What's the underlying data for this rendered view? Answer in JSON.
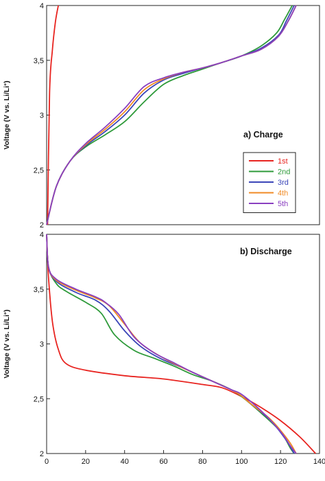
{
  "chart_data": [
    {
      "type": "line",
      "panel_title": "a) Charge",
      "ylabel": "Voltage (V vs. Li/Li",
      "ylabel_sup": "+",
      "ylabel_close": ")",
      "ylim": [
        2,
        4
      ],
      "xlim": [
        0,
        140
      ],
      "yticks": [
        "2",
        "2,5",
        "3",
        "3,5",
        "4"
      ],
      "yticks_values": [
        2,
        2.5,
        3,
        3.5,
        4
      ],
      "legend_position": "right",
      "series": [
        {
          "name": "1st",
          "color": "#e8231f",
          "points": [
            [
              0.5,
              2.0
            ],
            [
              1.5,
              3.2
            ],
            [
              3,
              3.6
            ],
            [
              4.5,
              3.85
            ],
            [
              6,
              4.0
            ]
          ]
        },
        {
          "name": "2nd",
          "color": "#2e9a3a",
          "points": [
            [
              0,
              2.0
            ],
            [
              5,
              2.35
            ],
            [
              12,
              2.58
            ],
            [
              20,
              2.71
            ],
            [
              30,
              2.82
            ],
            [
              40,
              2.94
            ],
            [
              50,
              3.12
            ],
            [
              60,
              3.28
            ],
            [
              70,
              3.36
            ],
            [
              80,
              3.42
            ],
            [
              90,
              3.48
            ],
            [
              100,
              3.54
            ],
            [
              110,
              3.63
            ],
            [
              118,
              3.75
            ],
            [
              122,
              3.87
            ],
            [
              126,
              4.0
            ]
          ]
        },
        {
          "name": "3rd",
          "color": "#3b46b8",
          "points": [
            [
              0,
              2.0
            ],
            [
              5,
              2.35
            ],
            [
              12,
              2.58
            ],
            [
              20,
              2.72
            ],
            [
              30,
              2.85
            ],
            [
              40,
              3.0
            ],
            [
              50,
              3.2
            ],
            [
              60,
              3.32
            ],
            [
              70,
              3.38
            ],
            [
              80,
              3.43
            ],
            [
              90,
              3.48
            ],
            [
              100,
              3.54
            ],
            [
              110,
              3.61
            ],
            [
              119,
              3.73
            ],
            [
              123,
              3.86
            ],
            [
              127,
              4.0
            ]
          ]
        },
        {
          "name": "4th",
          "color": "#f08a24",
          "points": [
            [
              0,
              2.0
            ],
            [
              5,
              2.35
            ],
            [
              12,
              2.58
            ],
            [
              20,
              2.73
            ],
            [
              30,
              2.87
            ],
            [
              40,
              3.03
            ],
            [
              50,
              3.23
            ],
            [
              60,
              3.33
            ],
            [
              70,
              3.39
            ],
            [
              80,
              3.43
            ],
            [
              90,
              3.48
            ],
            [
              100,
              3.54
            ],
            [
              110,
              3.6
            ],
            [
              119,
              3.72
            ],
            [
              124,
              3.86
            ],
            [
              128,
              4.0
            ]
          ]
        },
        {
          "name": "5th",
          "color": "#8a3fc0",
          "points": [
            [
              0,
              2.0
            ],
            [
              5,
              2.35
            ],
            [
              12,
              2.58
            ],
            [
              20,
              2.74
            ],
            [
              30,
              2.89
            ],
            [
              40,
              3.06
            ],
            [
              50,
              3.26
            ],
            [
              60,
              3.34
            ],
            [
              70,
              3.39
            ],
            [
              80,
              3.43
            ],
            [
              90,
              3.48
            ],
            [
              100,
              3.54
            ],
            [
              110,
              3.6
            ],
            [
              119,
              3.72
            ],
            [
              124,
              3.86
            ],
            [
              128,
              4.0
            ]
          ]
        }
      ]
    },
    {
      "type": "line",
      "panel_title": "b) Discharge",
      "ylabel": "Voltage (V vs. Li/Li",
      "ylabel_sup": "+",
      "ylabel_close": ")",
      "ylim": [
        2,
        4
      ],
      "xlim": [
        0,
        140
      ],
      "yticks": [
        "2",
        "2,5",
        "3",
        "3,5",
        "4"
      ],
      "yticks_values": [
        2,
        2.5,
        3,
        3.5,
        4
      ],
      "xticks": [
        "0",
        "20",
        "40",
        "60",
        "80",
        "100",
        "120",
        "140"
      ],
      "xticks_values": [
        0,
        20,
        40,
        60,
        80,
        100,
        120,
        140
      ],
      "series": [
        {
          "name": "1st",
          "color": "#e8231f",
          "points": [
            [
              0,
              4.0
            ],
            [
              1,
              3.6
            ],
            [
              3,
              3.2
            ],
            [
              6,
              2.95
            ],
            [
              10,
              2.82
            ],
            [
              20,
              2.76
            ],
            [
              40,
              2.71
            ],
            [
              60,
              2.68
            ],
            [
              80,
              2.63
            ],
            [
              90,
              2.6
            ],
            [
              100,
              2.52
            ],
            [
              110,
              2.42
            ],
            [
              120,
              2.3
            ],
            [
              130,
              2.15
            ],
            [
              138,
              2.0
            ]
          ]
        },
        {
          "name": "2nd",
          "color": "#2e9a3a",
          "points": [
            [
              0,
              4.0
            ],
            [
              1,
              3.7
            ],
            [
              5,
              3.55
            ],
            [
              10,
              3.48
            ],
            [
              20,
              3.38
            ],
            [
              28,
              3.28
            ],
            [
              35,
              3.08
            ],
            [
              45,
              2.94
            ],
            [
              55,
              2.87
            ],
            [
              65,
              2.8
            ],
            [
              75,
              2.72
            ],
            [
              85,
              2.66
            ],
            [
              95,
              2.58
            ],
            [
              100,
              2.52
            ],
            [
              110,
              2.37
            ],
            [
              120,
              2.2
            ],
            [
              125,
              2.05
            ],
            [
              127,
              2.0
            ]
          ]
        },
        {
          "name": "3rd",
          "color": "#3b46b8",
          "points": [
            [
              0,
              4.0
            ],
            [
              1,
              3.7
            ],
            [
              5,
              3.57
            ],
            [
              15,
              3.47
            ],
            [
              25,
              3.4
            ],
            [
              32,
              3.3
            ],
            [
              40,
              3.12
            ],
            [
              48,
              2.98
            ],
            [
              58,
              2.87
            ],
            [
              70,
              2.78
            ],
            [
              80,
              2.7
            ],
            [
              90,
              2.62
            ],
            [
              98,
              2.55
            ],
            [
              105,
              2.45
            ],
            [
              115,
              2.3
            ],
            [
              123,
              2.12
            ],
            [
              127,
              2.0
            ]
          ]
        },
        {
          "name": "4th",
          "color": "#f08a24",
          "points": [
            [
              0,
              4.0
            ],
            [
              1,
              3.7
            ],
            [
              5,
              3.58
            ],
            [
              15,
              3.49
            ],
            [
              25,
              3.42
            ],
            [
              32,
              3.35
            ],
            [
              40,
              3.18
            ],
            [
              48,
              3.01
            ],
            [
              58,
              2.89
            ],
            [
              70,
              2.78
            ],
            [
              80,
              2.7
            ],
            [
              90,
              2.62
            ],
            [
              98,
              2.55
            ],
            [
              105,
              2.45
            ],
            [
              115,
              2.31
            ],
            [
              124,
              2.12
            ],
            [
              128,
              2.0
            ]
          ]
        },
        {
          "name": "5th",
          "color": "#8a3fc0",
          "points": [
            [
              0,
              4.0
            ],
            [
              1,
              3.7
            ],
            [
              5,
              3.59
            ],
            [
              15,
              3.5
            ],
            [
              25,
              3.43
            ],
            [
              30,
              3.38
            ],
            [
              37,
              3.27
            ],
            [
              45,
              3.06
            ],
            [
              55,
              2.92
            ],
            [
              65,
              2.83
            ],
            [
              75,
              2.74
            ],
            [
              85,
              2.66
            ],
            [
              95,
              2.58
            ],
            [
              100,
              2.54
            ],
            [
              110,
              2.39
            ],
            [
              120,
              2.2
            ],
            [
              125,
              2.07
            ],
            [
              128,
              2.0
            ]
          ]
        }
      ]
    }
  ]
}
